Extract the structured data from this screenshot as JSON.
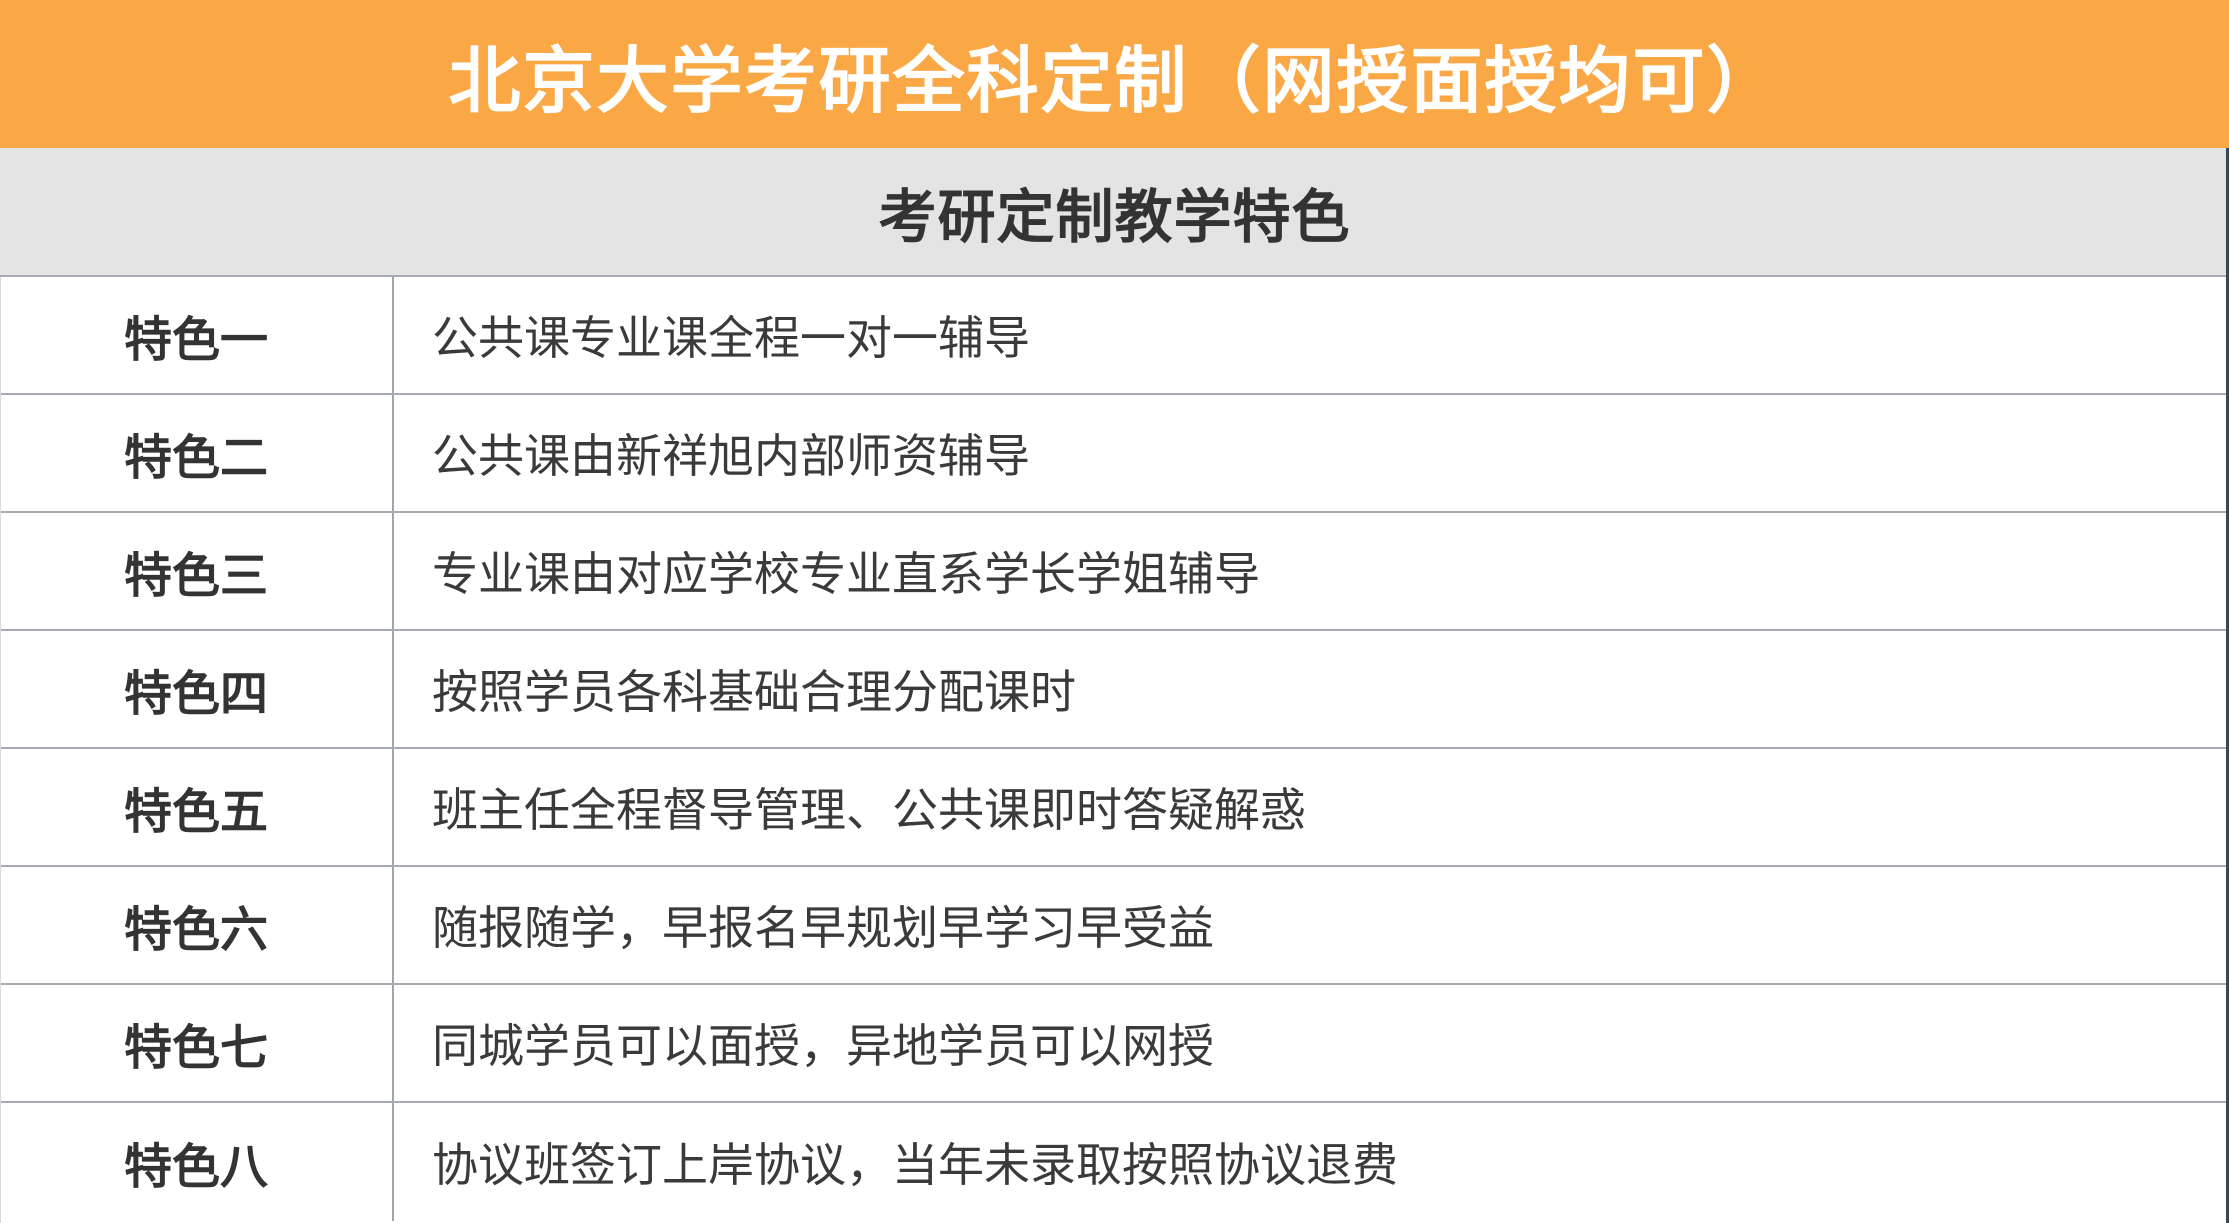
{
  "banner": {
    "title": "北京大学考研全科定制（网授面授均可）",
    "bg_color": "#FAA846",
    "text_color": "#FFFFFF"
  },
  "section": {
    "subtitle": "考研定制教学特色",
    "bg_color": "#E4E4E4",
    "text_color": "#333333"
  },
  "table": {
    "label_header_prefix": "特色",
    "rows": [
      {
        "label": "特色一",
        "content": "公共课专业课全程一对一辅导"
      },
      {
        "label": "特色二",
        "content": "公共课由新祥旭内部师资辅导"
      },
      {
        "label": "特色三",
        "content": "专业课由对应学校专业直系学长学姐辅导"
      },
      {
        "label": "特色四",
        "content": "按照学员各科基础合理分配课时"
      },
      {
        "label": "特色五",
        "content": "班主任全程督导管理、公共课即时答疑解惑"
      },
      {
        "label": "特色六",
        "content": "随报随学，早报名早规划早学习早受益"
      },
      {
        "label": "特色七",
        "content": "同城学员可以面授，异地学员可以网授"
      },
      {
        "label": "特色八",
        "content": "协议班签订上岸协议，当年未录取按照协议退费"
      }
    ]
  },
  "colors": {
    "accent_orange": "#FAA846",
    "subtitle_gray": "#E4E4E4",
    "row_border_gray": "#A6ABB3",
    "column_divider_gray": "#9FA5AD",
    "text_dark": "#333333",
    "right_edge_dark": "#3C4754"
  }
}
